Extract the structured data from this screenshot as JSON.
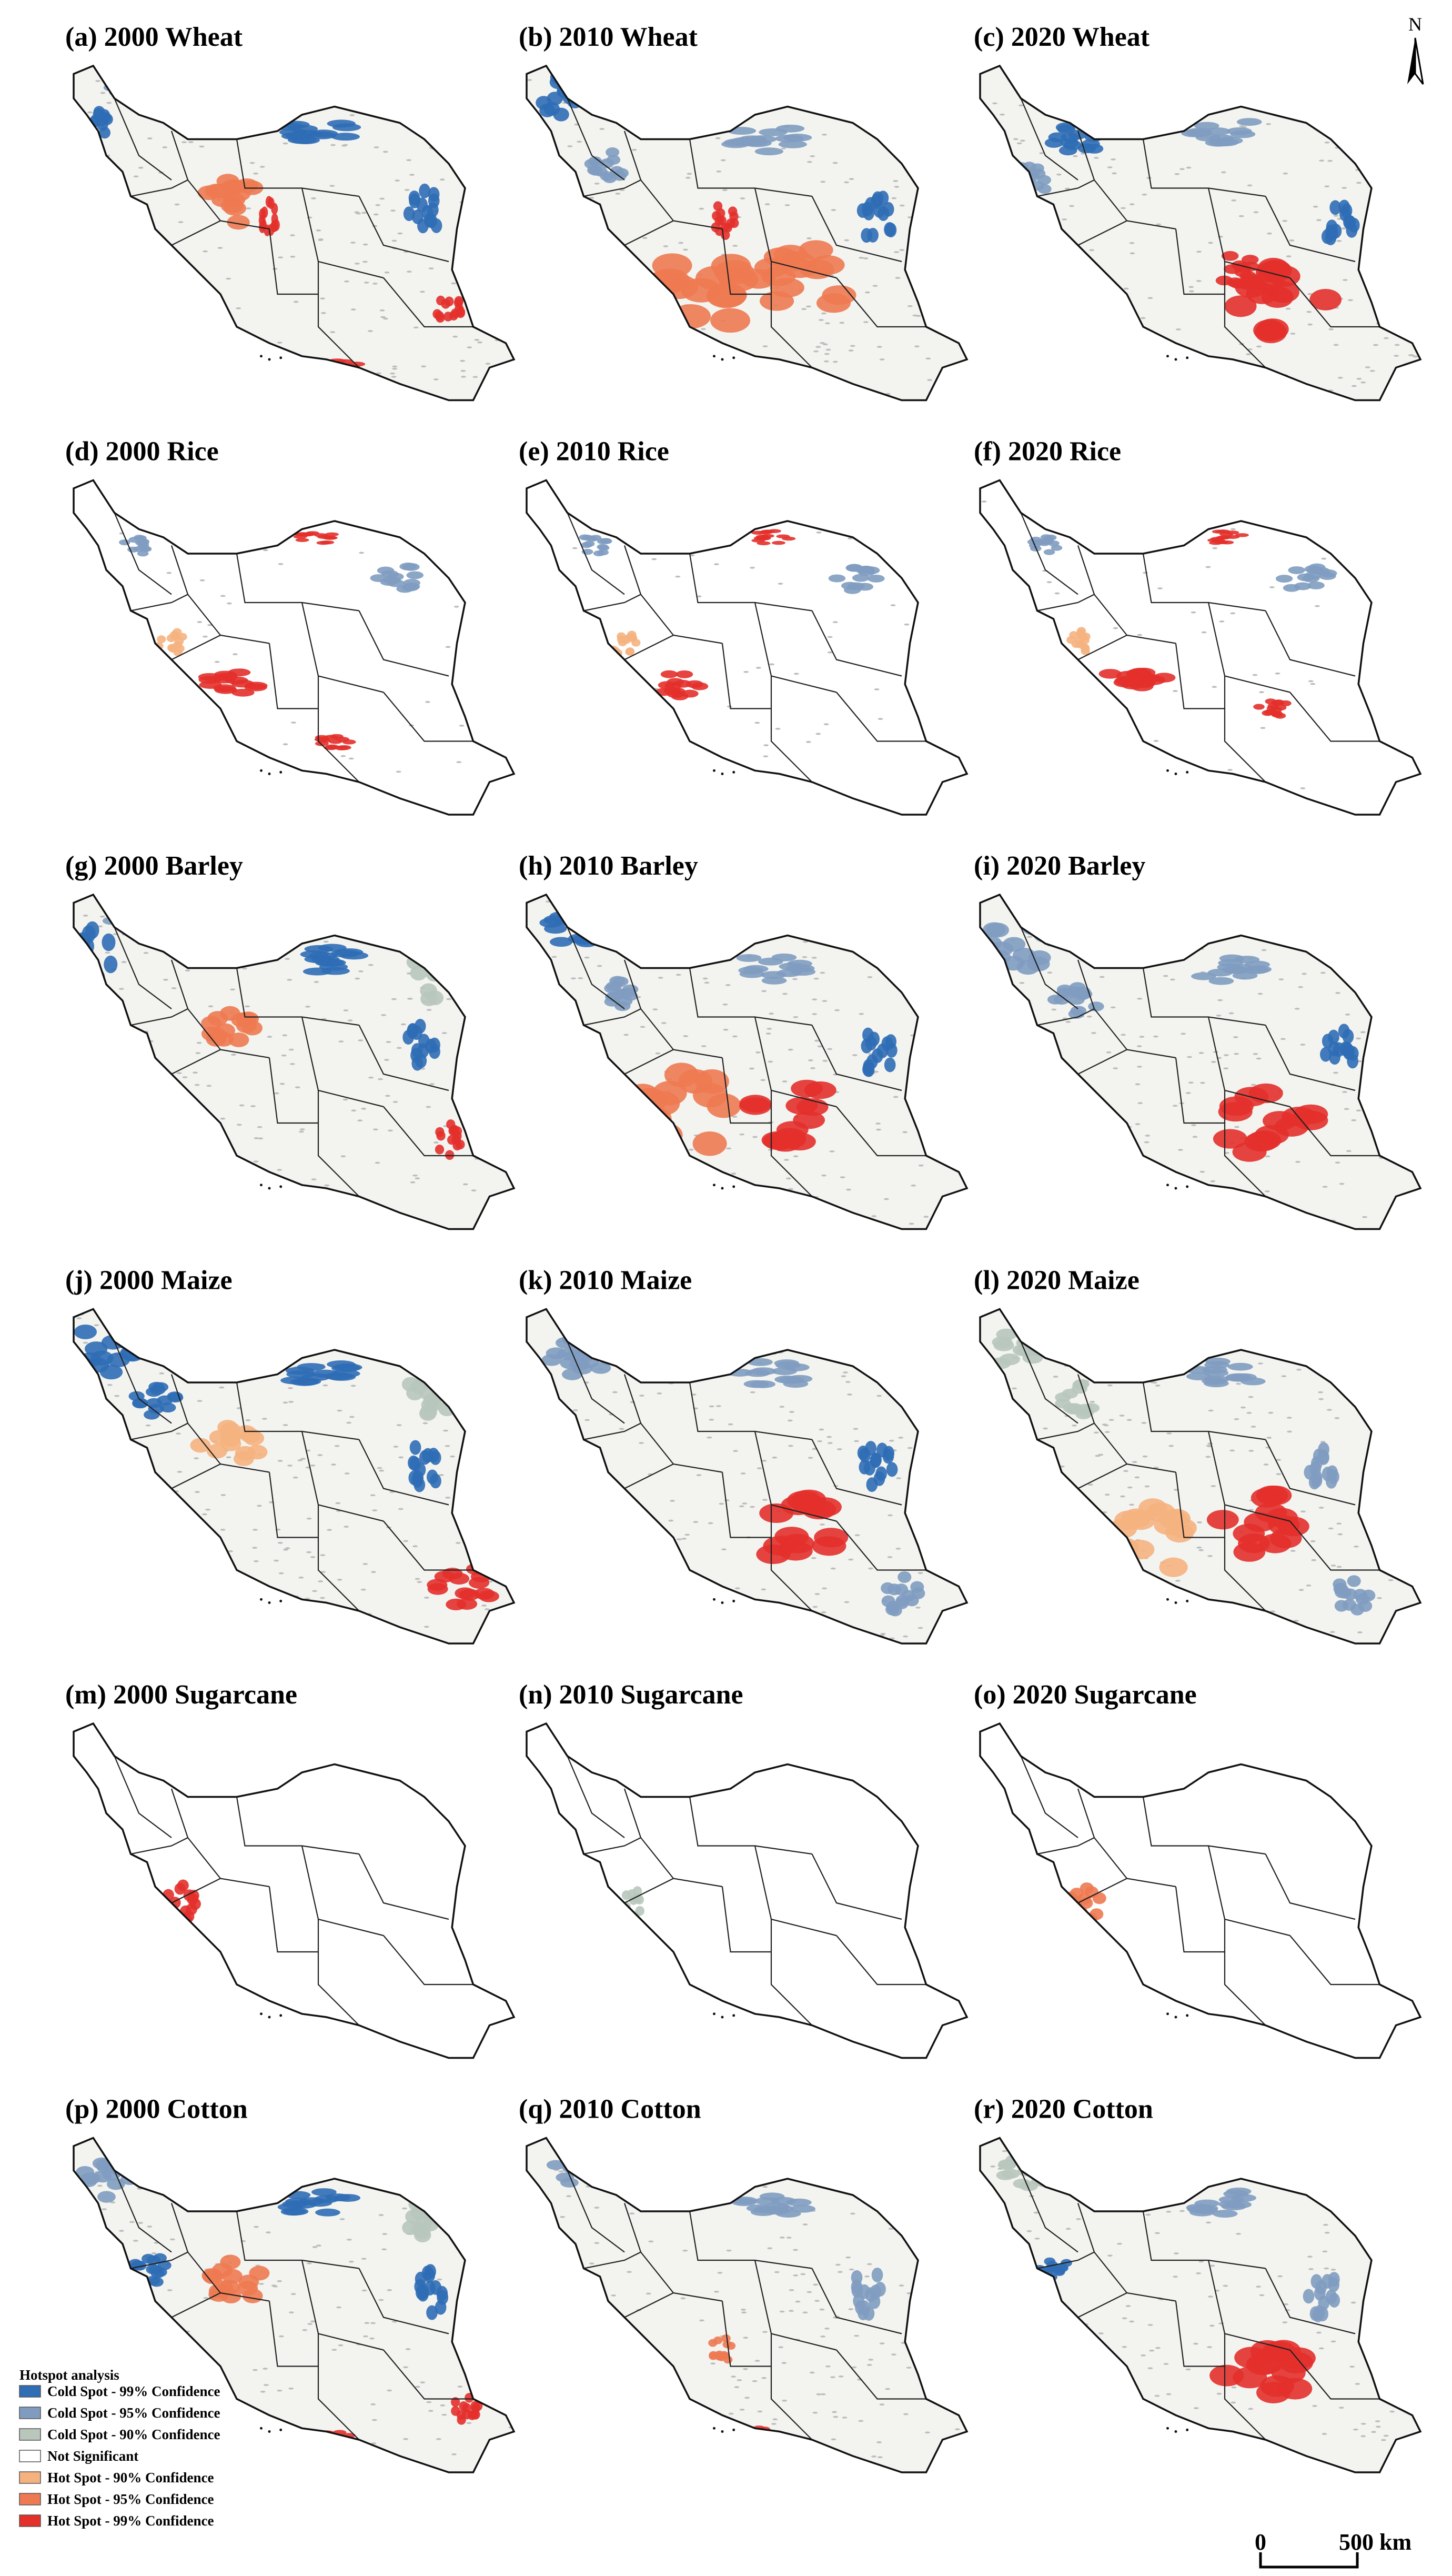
{
  "north": "N",
  "panels": [
    {
      "title": "(a) 2000 Wheat"
    },
    {
      "title": "(b) 2010 Wheat"
    },
    {
      "title": "(c) 2020 Wheat"
    },
    {
      "title": "(d) 2000 Rice"
    },
    {
      "title": "(e) 2010 Rice"
    },
    {
      "title": "(f) 2020 Rice"
    },
    {
      "title": "(g) 2000 Barley"
    },
    {
      "title": "(h) 2010 Barley"
    },
    {
      "title": "(i) 2020 Barley"
    },
    {
      "title": "(j) 2000 Maize"
    },
    {
      "title": "(k) 2010 Maize"
    },
    {
      "title": "(l) 2020 Maize"
    },
    {
      "title": "(m) 2000 Sugarcane"
    },
    {
      "title": "(n) 2010 Sugarcane"
    },
    {
      "title": "(o) 2020 Sugarcane"
    },
    {
      "title": "(p) 2000 Cotton"
    },
    {
      "title": "(q) 2010 Cotton"
    },
    {
      "title": "(r) 2020 Cotton"
    }
  ],
  "legend": {
    "title": "Hotspot analysis",
    "items": [
      {
        "label": "Cold Spot - 99% Confidence",
        "color": "#2f6db5"
      },
      {
        "label": "Cold Spot - 95% Confidence",
        "color": "#7f9cc0"
      },
      {
        "label": "Cold Spot - 90% Confidence",
        "color": "#b8c6bc"
      },
      {
        "label": "Not Significant",
        "color": "#ffffff"
      },
      {
        "label": "Hot Spot - 90% Confidence",
        "color": "#f5b27f"
      },
      {
        "label": "Hot Spot - 95% Confidence",
        "color": "#ee7a52"
      },
      {
        "label": "Hot Spot - 99% Confidence",
        "color": "#e3302b"
      }
    ]
  },
  "scale_bar": {
    "labels": [
      "0",
      "500 km"
    ]
  }
}
